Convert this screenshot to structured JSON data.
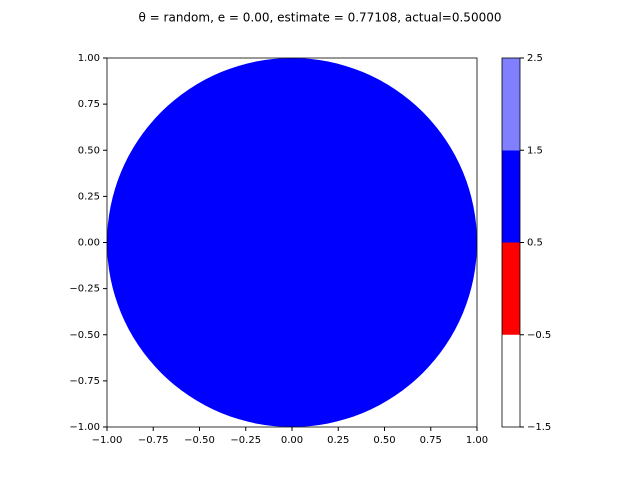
{
  "chart_data": {
    "type": "disk",
    "title": "θ = random, e = 0.00, estimate = 0.77108, actual=0.50000",
    "xlim": [
      -1,
      1
    ],
    "ylim": [
      -1,
      1
    ],
    "xticks": [
      {
        "value": -1,
        "label": "−1.00"
      },
      {
        "value": -0.75,
        "label": "−0.75"
      },
      {
        "value": -0.5,
        "label": "−0.50"
      },
      {
        "value": -0.25,
        "label": "−0.25"
      },
      {
        "value": 0,
        "label": "0.00"
      },
      {
        "value": 0.25,
        "label": "0.25"
      },
      {
        "value": 0.5,
        "label": "0.50"
      },
      {
        "value": 0.75,
        "label": "0.75"
      },
      {
        "value": 1,
        "label": "1.00"
      }
    ],
    "yticks": [
      {
        "value": -1,
        "label": "−1.00"
      },
      {
        "value": -0.75,
        "label": "−0.75"
      },
      {
        "value": -0.5,
        "label": "−0.50"
      },
      {
        "value": -0.25,
        "label": "−0.25"
      },
      {
        "value": 0,
        "label": "0.00"
      },
      {
        "value": 0.25,
        "label": "0.25"
      },
      {
        "value": 0.5,
        "label": "0.50"
      },
      {
        "value": 0.75,
        "label": "0.75"
      },
      {
        "value": 1,
        "label": "1.00"
      }
    ],
    "disk": {
      "center": [
        0,
        0
      ],
      "radius": 1,
      "color": "#0000ff"
    },
    "colorbar": {
      "bounds": [
        -1.5,
        -0.5,
        0.5,
        1.5,
        2.5
      ],
      "colors": [
        "#ffffff",
        "#ff0000",
        "#0000ff",
        "#8080ff"
      ],
      "ticks": [
        {
          "value": -1.5,
          "label": "−1.5"
        },
        {
          "value": -0.5,
          "label": "−0.5"
        },
        0.5,
        1.5,
        2.5
      ]
    }
  }
}
